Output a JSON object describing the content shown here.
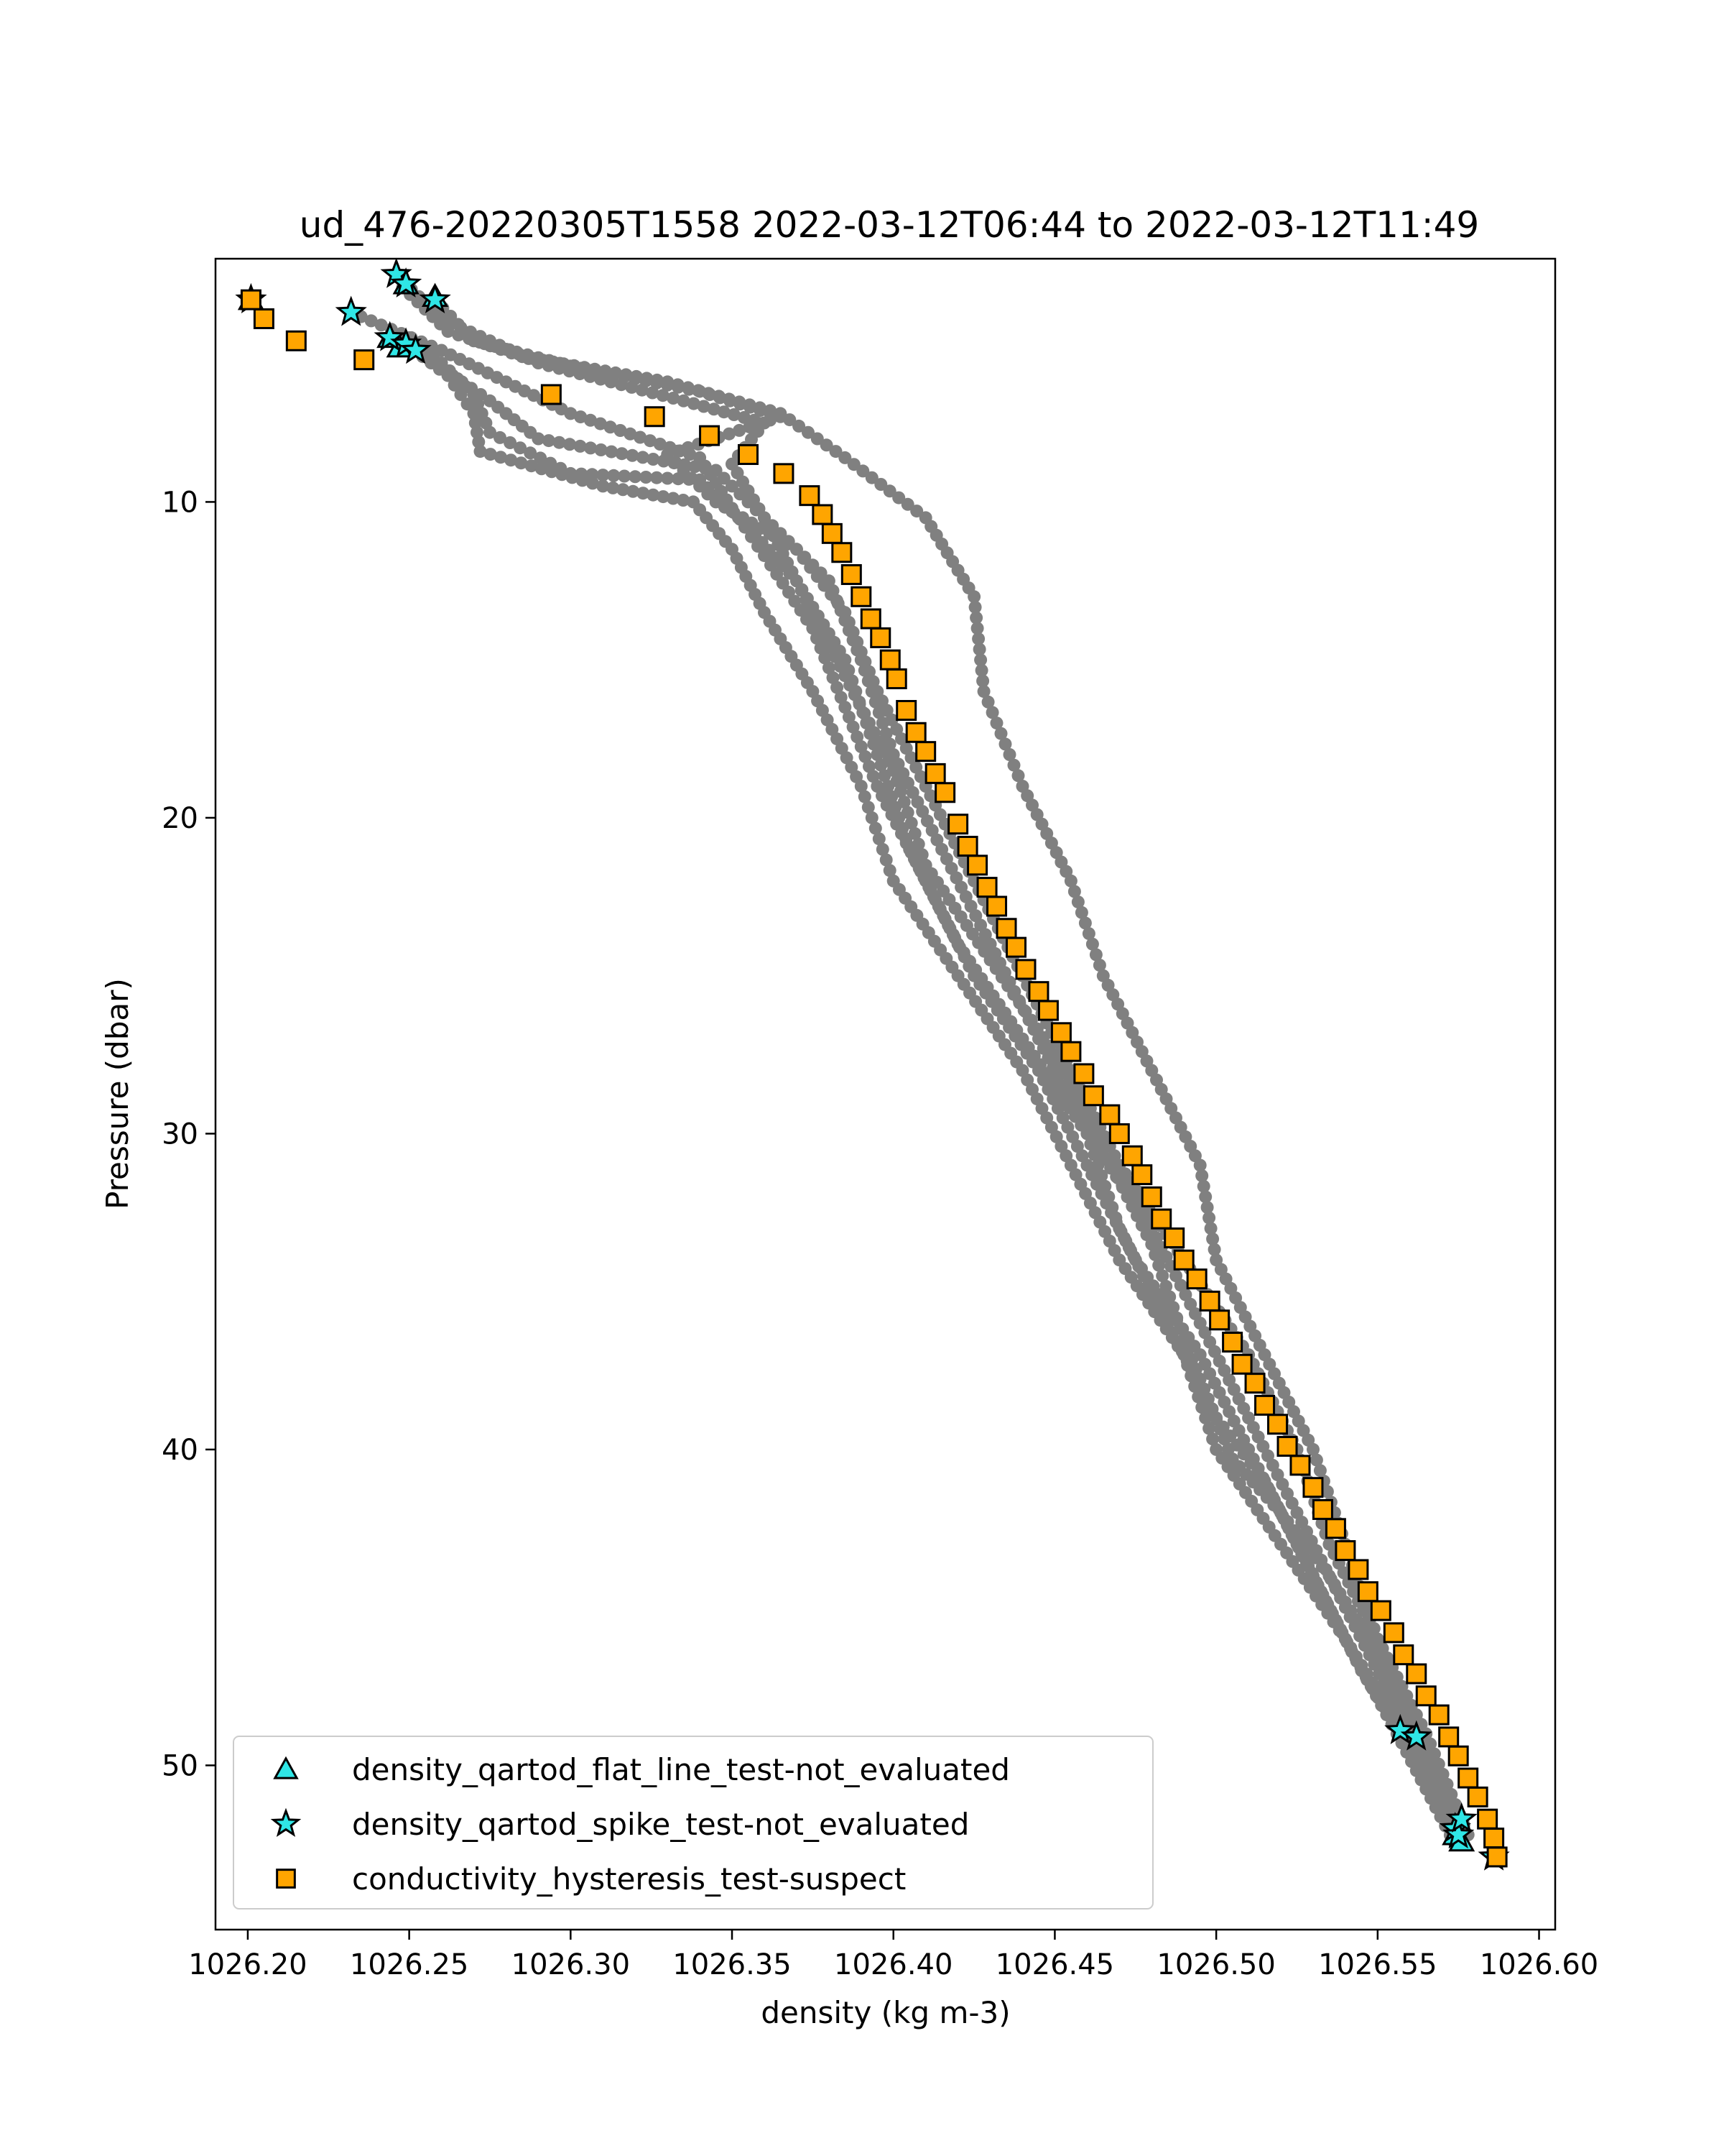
{
  "chart_data": {
    "type": "scatter",
    "title": "ud_476-20220305T1558 2022-03-12T06:44 to 2022-03-12T11:49",
    "xlabel": "density (kg m-3)",
    "ylabel": "Pressure (dbar)",
    "xlim": [
      1026.19,
      1026.605
    ],
    "ylim": [
      55.2,
      2.3
    ],
    "y_inverted": true,
    "xticks": [
      1026.2,
      1026.25,
      1026.3,
      1026.35,
      1026.4,
      1026.45,
      1026.5,
      1026.55,
      1026.6
    ],
    "xtick_labels": [
      "1026.20",
      "1026.25",
      "1026.30",
      "1026.35",
      "1026.40",
      "1026.45",
      "1026.50",
      "1026.55",
      "1026.60"
    ],
    "yticks": [
      10,
      20,
      30,
      40,
      50
    ],
    "ytick_labels": [
      "10",
      "20",
      "30",
      "40",
      "50"
    ],
    "grid": false,
    "legend_position": "lower-left",
    "profile_color": "#808080",
    "profiles": [
      [
        [
          1026.248,
          3.2
        ],
        [
          1026.262,
          4.6
        ],
        [
          1026.285,
          5.4
        ],
        [
          1026.33,
          6.2
        ],
        [
          1026.365,
          7.2
        ],
        [
          1026.385,
          8.6
        ],
        [
          1026.41,
          10.5
        ],
        [
          1026.425,
          13
        ],
        [
          1026.428,
          16
        ],
        [
          1026.44,
          19
        ],
        [
          1026.455,
          22
        ],
        [
          1026.465,
          25
        ],
        [
          1026.48,
          28
        ],
        [
          1026.495,
          31
        ],
        [
          1026.5,
          34
        ],
        [
          1026.515,
          37
        ],
        [
          1026.53,
          40
        ],
        [
          1026.54,
          43
        ],
        [
          1026.55,
          46
        ],
        [
          1026.565,
          49
        ],
        [
          1026.578,
          52.2
        ]
      ],
      [
        [
          1026.258,
          3.6
        ],
        [
          1026.27,
          4.9
        ],
        [
          1026.3,
          5.7
        ],
        [
          1026.34,
          6.5
        ],
        [
          1026.365,
          7.3
        ],
        [
          1026.33,
          8.5
        ],
        [
          1026.345,
          10
        ],
        [
          1026.37,
          11.5
        ],
        [
          1026.385,
          13.5
        ],
        [
          1026.395,
          16
        ],
        [
          1026.41,
          19
        ],
        [
          1026.425,
          22
        ],
        [
          1026.44,
          25
        ],
        [
          1026.455,
          28
        ],
        [
          1026.47,
          31
        ],
        [
          1026.49,
          34
        ],
        [
          1026.51,
          37
        ],
        [
          1026.525,
          40
        ],
        [
          1026.535,
          43
        ],
        [
          1026.55,
          46
        ],
        [
          1026.562,
          48.8
        ],
        [
          1026.574,
          52
        ]
      ],
      [
        [
          1026.25,
          4.8
        ],
        [
          1026.26,
          5.6
        ],
        [
          1026.27,
          6.6
        ],
        [
          1026.275,
          7.8
        ],
        [
          1026.3,
          9.1
        ],
        [
          1026.34,
          9.3
        ],
        [
          1026.355,
          10.8
        ],
        [
          1026.37,
          12.5
        ],
        [
          1026.385,
          15
        ],
        [
          1026.395,
          18
        ],
        [
          1026.405,
          21
        ],
        [
          1026.42,
          24
        ],
        [
          1026.44,
          27
        ],
        [
          1026.46,
          30
        ],
        [
          1026.47,
          33
        ],
        [
          1026.485,
          36
        ],
        [
          1026.5,
          39
        ],
        [
          1026.515,
          41
        ],
        [
          1026.53,
          44
        ],
        [
          1026.545,
          47
        ],
        [
          1026.557,
          49
        ],
        [
          1026.576,
          52.4
        ]
      ],
      [
        [
          1026.249,
          5.0
        ],
        [
          1026.262,
          6.0
        ],
        [
          1026.27,
          7.2
        ],
        [
          1026.272,
          8.4
        ],
        [
          1026.31,
          9.5
        ],
        [
          1026.338,
          10.0
        ],
        [
          1026.35,
          11.5
        ],
        [
          1026.36,
          13.5
        ],
        [
          1026.375,
          16
        ],
        [
          1026.39,
          19
        ],
        [
          1026.4,
          22
        ],
        [
          1026.42,
          25
        ],
        [
          1026.44,
          28
        ],
        [
          1026.455,
          31
        ],
        [
          1026.47,
          34
        ],
        [
          1026.49,
          37
        ],
        [
          1026.5,
          40
        ],
        [
          1026.52,
          43
        ],
        [
          1026.54,
          46
        ],
        [
          1026.555,
          48.5
        ],
        [
          1026.575,
          52.1
        ]
      ],
      [
        [
          1026.246,
          2.8
        ],
        [
          1026.26,
          4.2
        ],
        [
          1026.29,
          5.6
        ],
        [
          1026.335,
          6.8
        ],
        [
          1026.36,
          7.5
        ],
        [
          1026.35,
          8.8
        ],
        [
          1026.36,
          10.5
        ],
        [
          1026.38,
          12.5
        ],
        [
          1026.39,
          15
        ],
        [
          1026.4,
          18
        ],
        [
          1026.415,
          21
        ],
        [
          1026.43,
          24
        ],
        [
          1026.445,
          27
        ],
        [
          1026.46,
          30
        ],
        [
          1026.48,
          33
        ],
        [
          1026.495,
          36
        ],
        [
          1026.51,
          39
        ],
        [
          1026.525,
          42
        ],
        [
          1026.54,
          45
        ],
        [
          1026.555,
          48
        ],
        [
          1026.574,
          52.2
        ]
      ],
      [
        [
          1026.232,
          4.0
        ],
        [
          1026.26,
          5.2
        ],
        [
          1026.28,
          6.2
        ],
        [
          1026.3,
          7.2
        ],
        [
          1026.34,
          8.6
        ],
        [
          1026.35,
          10.2
        ],
        [
          1026.362,
          12
        ],
        [
          1026.375,
          14
        ],
        [
          1026.385,
          16.5
        ],
        [
          1026.395,
          19
        ],
        [
          1026.41,
          22
        ],
        [
          1026.425,
          25
        ],
        [
          1026.445,
          28
        ],
        [
          1026.46,
          31
        ],
        [
          1026.475,
          34
        ],
        [
          1026.495,
          37
        ],
        [
          1026.51,
          40
        ],
        [
          1026.525,
          43
        ],
        [
          1026.54,
          46
        ],
        [
          1026.556,
          49
        ],
        [
          1026.574,
          52.5
        ]
      ],
      [
        [
          1026.252,
          5.2
        ],
        [
          1026.275,
          6.8
        ],
        [
          1026.29,
          8.0
        ],
        [
          1026.345,
          9.0
        ],
        [
          1026.36,
          10.5
        ],
        [
          1026.37,
          12.5
        ],
        [
          1026.385,
          15.5
        ],
        [
          1026.4,
          18.5
        ],
        [
          1026.41,
          21.5
        ],
        [
          1026.43,
          24.5
        ],
        [
          1026.45,
          27.5
        ],
        [
          1026.465,
          30.5
        ],
        [
          1026.48,
          33.5
        ],
        [
          1026.49,
          36.5
        ],
        [
          1026.505,
          40.3
        ],
        [
          1026.52,
          42
        ],
        [
          1026.535,
          44
        ],
        [
          1026.55,
          46.5
        ],
        [
          1026.562,
          49
        ],
        [
          1026.576,
          52
        ]
      ]
    ],
    "series": [
      {
        "name": "density_qartod_flat_line_test-not_evaluated",
        "marker": "triangle",
        "color": "#2fe6e6",
        "points": [
          [
            1026.201,
            3.6
          ],
          [
            1026.249,
            3.1
          ],
          [
            1026.258,
            3.5
          ],
          [
            1026.244,
            4.8
          ],
          [
            1026.247,
            5.1
          ],
          [
            1026.574,
            52.2
          ],
          [
            1026.576,
            52.4
          ]
        ]
      },
      {
        "name": "density_qartod_spike_test-not_evaluated",
        "marker": "star",
        "color": "#2fe6e6",
        "points": [
          [
            1026.246,
            2.8
          ],
          [
            1026.249,
            3.1
          ],
          [
            1026.258,
            3.6
          ],
          [
            1026.232,
            4.0
          ],
          [
            1026.244,
            4.8
          ],
          [
            1026.249,
            5.0
          ],
          [
            1026.252,
            5.2
          ],
          [
            1026.201,
            3.6
          ],
          [
            1026.557,
            48.9
          ],
          [
            1026.562,
            49.1
          ],
          [
            1026.574,
            52.0
          ],
          [
            1026.575,
            52.2
          ],
          [
            1026.586,
            52.9
          ],
          [
            1026.576,
            51.7
          ]
        ]
      },
      {
        "name": "conductivity_hysteresis_test-suspect",
        "marker": "square",
        "color": "#ffa500",
        "points": [
          [
            1026.201,
            3.6
          ],
          [
            1026.205,
            4.2
          ],
          [
            1026.215,
            4.9
          ],
          [
            1026.236,
            5.5
          ],
          [
            1026.294,
            6.6
          ],
          [
            1026.326,
            7.3
          ],
          [
            1026.343,
            7.9
          ],
          [
            1026.355,
            8.5
          ],
          [
            1026.366,
            9.1
          ],
          [
            1026.374,
            9.8
          ],
          [
            1026.378,
            10.4
          ],
          [
            1026.381,
            11.0
          ],
          [
            1026.384,
            11.6
          ],
          [
            1026.387,
            12.3
          ],
          [
            1026.39,
            13.0
          ],
          [
            1026.393,
            13.7
          ],
          [
            1026.396,
            14.3
          ],
          [
            1026.399,
            15.0
          ],
          [
            1026.401,
            15.6
          ],
          [
            1026.404,
            16.6
          ],
          [
            1026.407,
            17.3
          ],
          [
            1026.41,
            17.9
          ],
          [
            1026.413,
            18.6
          ],
          [
            1026.416,
            19.2
          ],
          [
            1026.42,
            20.2
          ],
          [
            1026.423,
            20.9
          ],
          [
            1026.426,
            21.5
          ],
          [
            1026.429,
            22.2
          ],
          [
            1026.432,
            22.8
          ],
          [
            1026.435,
            23.5
          ],
          [
            1026.438,
            24.1
          ],
          [
            1026.441,
            24.8
          ],
          [
            1026.445,
            25.5
          ],
          [
            1026.448,
            26.1
          ],
          [
            1026.452,
            26.8
          ],
          [
            1026.455,
            27.4
          ],
          [
            1026.459,
            28.1
          ],
          [
            1026.462,
            28.8
          ],
          [
            1026.467,
            29.4
          ],
          [
            1026.47,
            30.0
          ],
          [
            1026.474,
            30.7
          ],
          [
            1026.477,
            31.3
          ],
          [
            1026.48,
            32.0
          ],
          [
            1026.483,
            32.7
          ],
          [
            1026.487,
            33.3
          ],
          [
            1026.49,
            34.0
          ],
          [
            1026.494,
            34.6
          ],
          [
            1026.498,
            35.3
          ],
          [
            1026.501,
            35.9
          ],
          [
            1026.505,
            36.6
          ],
          [
            1026.508,
            37.3
          ],
          [
            1026.512,
            37.9
          ],
          [
            1026.515,
            38.6
          ],
          [
            1026.519,
            39.2
          ],
          [
            1026.522,
            39.9
          ],
          [
            1026.526,
            40.5
          ],
          [
            1026.53,
            41.2
          ],
          [
            1026.533,
            41.9
          ],
          [
            1026.537,
            42.5
          ],
          [
            1026.54,
            43.2
          ],
          [
            1026.544,
            43.8
          ],
          [
            1026.547,
            44.5
          ],
          [
            1026.551,
            45.1
          ],
          [
            1026.555,
            45.8
          ],
          [
            1026.558,
            46.5
          ],
          [
            1026.562,
            47.1
          ],
          [
            1026.565,
            47.8
          ],
          [
            1026.569,
            48.4
          ],
          [
            1026.572,
            49.1
          ],
          [
            1026.575,
            49.7
          ],
          [
            1026.578,
            50.4
          ],
          [
            1026.581,
            51.0
          ],
          [
            1026.584,
            51.7
          ],
          [
            1026.586,
            52.3
          ],
          [
            1026.587,
            52.9
          ]
        ]
      }
    ]
  }
}
